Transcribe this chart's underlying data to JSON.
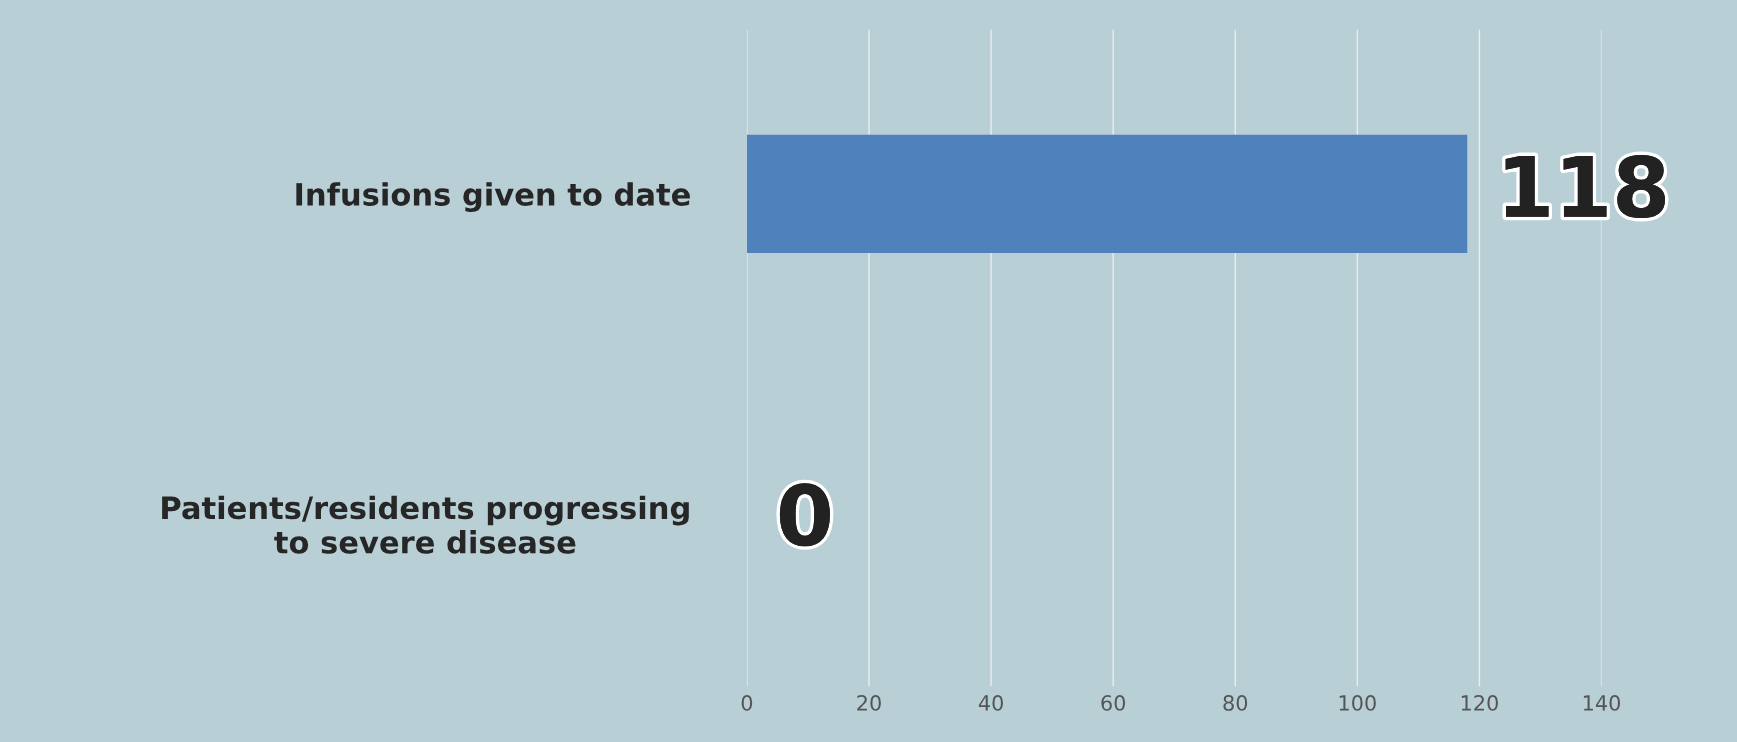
{
  "chart_data": {
    "type": "bar",
    "orientation": "horizontal",
    "categories": [
      "Infusions given to date",
      "Patients/residents progressing\nto severe disease"
    ],
    "values": [
      118,
      0
    ],
    "color": "#4f81bd",
    "xlim": [
      0,
      140
    ],
    "xticks": [
      0,
      20,
      40,
      60,
      80,
      100,
      120,
      140
    ],
    "grid": "x",
    "data_labels": true
  }
}
